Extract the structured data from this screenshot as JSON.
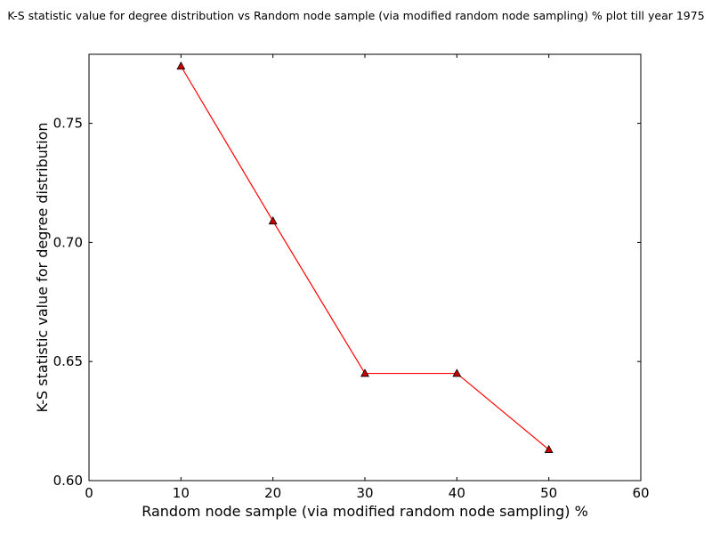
{
  "chart_data": {
    "type": "line",
    "title": "K-S statistic value for degree distribution vs Random node sample (via modified random node sampling) % plot till year 1975",
    "xlabel": "Random node sample (via modified random node sampling) %",
    "ylabel": "K-S statistic value for degree distribution",
    "xlim": [
      0,
      60
    ],
    "ylim": [
      0.6,
      0.779
    ],
    "x_ticks": [
      0,
      10,
      20,
      30,
      40,
      50,
      60
    ],
    "x_tick_labels": [
      "0",
      "10",
      "20",
      "30",
      "40",
      "50",
      "60"
    ],
    "y_ticks": [
      0.6,
      0.65,
      0.7,
      0.75
    ],
    "y_tick_labels": [
      "0.60",
      "0.65",
      "0.70",
      "0.75"
    ],
    "grid": false,
    "series": [
      {
        "x": [
          10,
          20,
          30,
          40,
          50
        ],
        "values": [
          0.774,
          0.709,
          0.645,
          0.645,
          0.613
        ],
        "color": "#ff0000",
        "marker": "triangle-up",
        "marker_color": "#cc0000"
      }
    ]
  }
}
